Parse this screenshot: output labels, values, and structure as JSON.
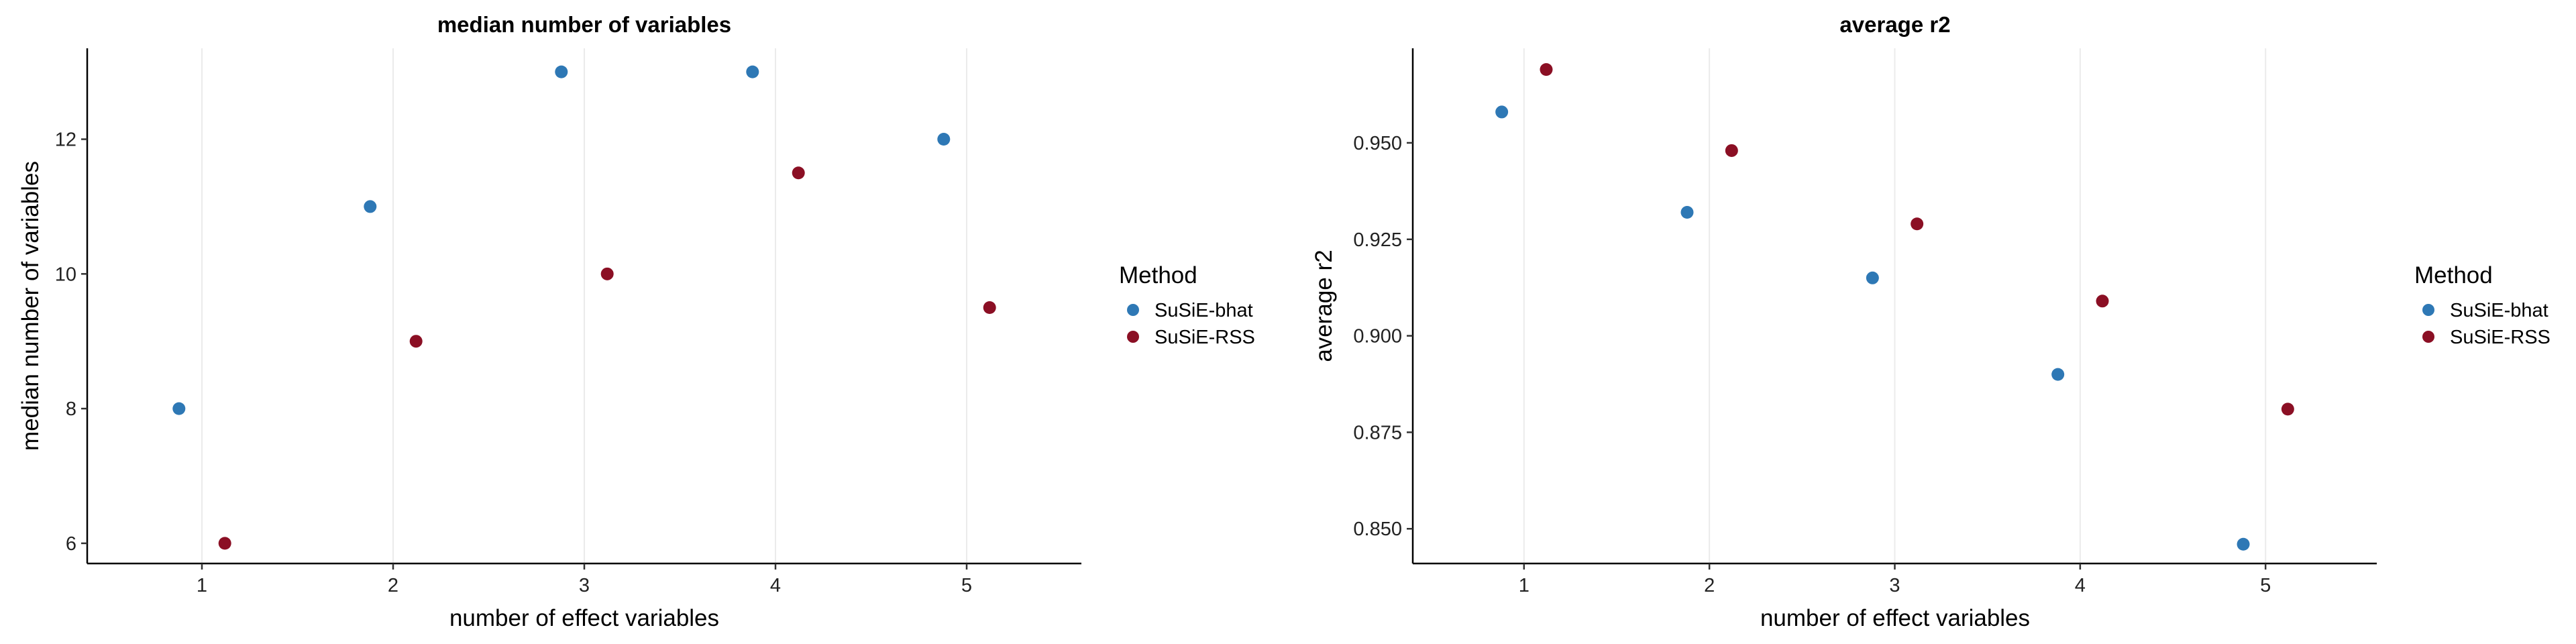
{
  "legend": {
    "title": "Method",
    "entries": [
      {
        "label": "SuSiE-bhat",
        "color": "#2e78b5"
      },
      {
        "label": "SuSiE-RSS",
        "color": "#8b0f24"
      }
    ]
  },
  "chart_data": [
    {
      "type": "scatter",
      "title": "median number of variables",
      "xlabel": "number of effect variables",
      "ylabel": "median number of variables",
      "x": [
        1,
        2,
        3,
        4,
        5
      ],
      "xlim": [
        0.4,
        5.6
      ],
      "ylim": [
        5.7,
        13.35
      ],
      "yticks": [
        6,
        8,
        10,
        12
      ],
      "ytick_labels": [
        "6",
        "8",
        "10",
        "12"
      ],
      "xticks": [
        1,
        2,
        3,
        4,
        5
      ],
      "xtick_labels": [
        "1",
        "2",
        "3",
        "4",
        "5"
      ],
      "grid": "vertical",
      "legend_position": "right",
      "series": [
        {
          "name": "SuSiE-bhat",
          "color": "#2e78b5",
          "values": [
            8,
            11,
            13,
            13,
            12
          ]
        },
        {
          "name": "SuSiE-RSS",
          "color": "#8b0f24",
          "values": [
            6,
            9,
            10,
            11.5,
            9.5
          ]
        }
      ]
    },
    {
      "type": "scatter",
      "title": "average r2",
      "xlabel": "number of effect variables",
      "ylabel": "average r2",
      "x": [
        1,
        2,
        3,
        4,
        5
      ],
      "xlim": [
        0.4,
        5.6
      ],
      "ylim": [
        0.841,
        0.9745
      ],
      "yticks": [
        0.85,
        0.875,
        0.9,
        0.925,
        0.95
      ],
      "ytick_labels": [
        "0.850",
        "0.875",
        "0.900",
        "0.925",
        "0.950"
      ],
      "xticks": [
        1,
        2,
        3,
        4,
        5
      ],
      "xtick_labels": [
        "1",
        "2",
        "3",
        "4",
        "5"
      ],
      "grid": "vertical",
      "legend_position": "right",
      "series": [
        {
          "name": "SuSiE-bhat",
          "color": "#2e78b5",
          "values": [
            0.958,
            0.932,
            0.915,
            0.89,
            0.846
          ]
        },
        {
          "name": "SuSiE-RSS",
          "color": "#8b0f24",
          "values": [
            0.969,
            0.948,
            0.929,
            0.909,
            0.881
          ]
        }
      ]
    }
  ]
}
